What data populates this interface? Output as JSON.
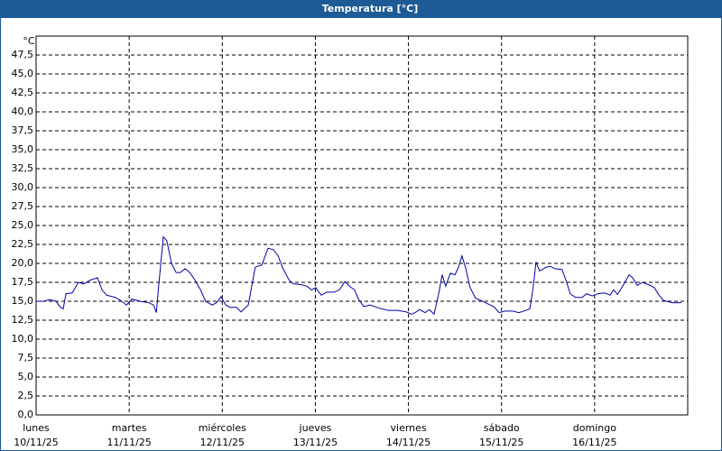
{
  "chart_data": {
    "type": "line",
    "title": "Temperatura [°C]",
    "y_unit": "°C",
    "x": [
      0,
      1.9,
      3.5,
      5.1,
      6.3,
      7.0,
      7.7,
      9.3,
      10.9,
      12.3,
      14.0,
      15.8,
      17.0,
      18.2,
      20.5,
      22.1,
      23.3,
      24.7,
      26.8,
      29.1,
      30.3,
      31.0,
      31.6,
      32.8,
      33.7,
      34.9,
      36.1,
      37.2,
      38.4,
      39.6,
      40.7,
      42.4,
      43.7,
      45.4,
      46.5,
      47.7,
      48.9,
      50.0,
      51.7,
      52.8,
      54.7,
      56.5,
      58.2,
      59.8,
      61.2,
      62.4,
      63.5,
      65.2,
      66.3,
      68.2,
      69.8,
      71.0,
      72.1,
      73.5,
      74.9,
      76.8,
      78.2,
      79.6,
      81.0,
      82.1,
      83.1,
      84.5,
      86.1,
      88.4,
      90.8,
      93.1,
      95.4,
      96.8,
      97.7,
      98.9,
      100.3,
      101.4,
      102.6,
      103.8,
      104.7,
      105.6,
      106.8,
      108.0,
      108.9,
      109.8,
      110.8,
      111.9,
      113.3,
      114.7,
      116.3,
      118.0,
      119.4,
      121.0,
      122.8,
      124.5,
      126.3,
      127.3,
      128.2,
      128.9,
      129.8,
      131.5,
      132.6,
      133.8,
      135.6,
      136.8,
      137.7,
      139.1,
      140.8,
      141.9,
      143.4,
      144.8,
      146.6,
      148.0,
      148.9,
      149.9,
      151.0,
      152.9,
      153.8,
      155.0,
      156.4,
      158.3,
      159.4,
      160.6,
      161.8,
      164.1,
      166.4
    ],
    "values": [
      15.0,
      15.0,
      15.2,
      15.0,
      14.2,
      14.0,
      16.0,
      16.1,
      17.5,
      17.3,
      17.8,
      18.1,
      16.5,
      15.8,
      15.5,
      15.0,
      14.5,
      15.3,
      15.0,
      14.8,
      14.5,
      13.5,
      17.0,
      23.5,
      23.0,
      20.0,
      18.8,
      18.8,
      19.3,
      18.8,
      18.0,
      16.5,
      15.0,
      14.5,
      14.8,
      15.6,
      14.5,
      14.2,
      14.2,
      13.6,
      14.5,
      19.5,
      19.8,
      22.0,
      21.8,
      21.0,
      19.5,
      17.8,
      17.3,
      17.2,
      17.0,
      16.5,
      16.8,
      15.8,
      16.2,
      16.2,
      16.5,
      17.6,
      16.9,
      16.5,
      15.3,
      14.3,
      14.5,
      14.1,
      13.8,
      13.8,
      13.6,
      13.3,
      13.5,
      13.9,
      13.5,
      13.9,
      13.3,
      16.0,
      18.5,
      17.0,
      18.7,
      18.5,
      19.5,
      21.0,
      19.3,
      16.8,
      15.4,
      15.1,
      14.7,
      14.3,
      13.5,
      13.7,
      13.7,
      13.5,
      13.8,
      14.0,
      17.0,
      20.2,
      19.0,
      19.5,
      19.6,
      19.3,
      19.2,
      17.5,
      16.0,
      15.5,
      15.5,
      16.0,
      15.7,
      16.0,
      16.1,
      15.8,
      16.5,
      15.9,
      16.8,
      18.5,
      18.1,
      17.1,
      17.5,
      17.1,
      16.8,
      15.8,
      15.1,
      14.8,
      14.8
    ],
    "color": "#0000a8",
    "xlim": [
      0,
      168
    ],
    "xticks": [
      {
        "value": 0,
        "label": "lunes"
      },
      {
        "value": 24,
        "label": "martes"
      },
      {
        "value": 48,
        "label": "miércoles"
      },
      {
        "value": 72,
        "label": "jueves"
      },
      {
        "value": 96,
        "label": "viernes"
      },
      {
        "value": 120,
        "label": "sábado"
      },
      {
        "value": 144,
        "label": "domingo"
      }
    ],
    "xtick_dates": [
      "10/11/25",
      "11/11/25",
      "12/11/25",
      "13/11/25",
      "14/11/25",
      "15/11/25",
      "16/11/25"
    ],
    "ylim": [
      0,
      50
    ],
    "yticks": [
      {
        "value": 0,
        "label": "0,0"
      },
      {
        "value": 2.5,
        "label": "2,5"
      },
      {
        "value": 5,
        "label": "5,0"
      },
      {
        "value": 7.5,
        "label": "7,5"
      },
      {
        "value": 10,
        "label": "10,0"
      },
      {
        "value": 12.5,
        "label": "12,5"
      },
      {
        "value": 15,
        "label": "15,0"
      },
      {
        "value": 17.5,
        "label": "17,5"
      },
      {
        "value": 20,
        "label": "20,0"
      },
      {
        "value": 22.5,
        "label": "22,5"
      },
      {
        "value": 25,
        "label": "25,0"
      },
      {
        "value": 27.5,
        "label": "27,5"
      },
      {
        "value": 30,
        "label": "30,0"
      },
      {
        "value": 32.5,
        "label": "32,5"
      },
      {
        "value": 35,
        "label": "35,0"
      },
      {
        "value": 37.5,
        "label": "37,5"
      },
      {
        "value": 40,
        "label": "40,0"
      },
      {
        "value": 42.5,
        "label": "42,5"
      },
      {
        "value": 45,
        "label": "45,0"
      },
      {
        "value": 47.5,
        "label": "47,5"
      }
    ],
    "grid": true
  }
}
